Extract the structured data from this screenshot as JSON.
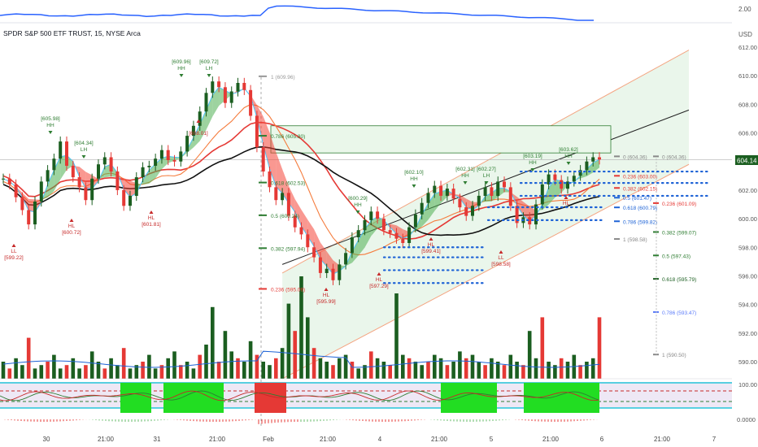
{
  "header": {
    "title": "SPDR S&P 500 ETF TRUST, 15, NYSE Arca",
    "currency": "USD"
  },
  "top_panel": {
    "right_value": "2.00"
  },
  "price_badge": {
    "value": "604.14",
    "color": "#1b5e20"
  },
  "colors": {
    "bull": "#1b5e20",
    "bear": "#e53935",
    "ma_red": "#e53935",
    "ma_orange": "#f57c3d",
    "ma_black": "#111111",
    "channel_fill": "#e8f5e9",
    "fib_blue": "#1565c0",
    "dots_blue": "#1e63d6",
    "osc_green": "#22dd22",
    "osc_red": "#e53935"
  },
  "chart_data": {
    "type": "candlestick",
    "ylim": [
      588,
      613
    ],
    "price_ticks": [
      "612.00",
      "610.00",
      "608.00",
      "606.00",
      "604.00",
      "602.00",
      "600.00",
      "598.00",
      "596.00",
      "594.00",
      "592.00",
      "590.00"
    ],
    "x_ticks": [
      "30",
      "21:00",
      "31",
      "21:00",
      "Feb",
      "21:00",
      "4",
      "21:00",
      "5",
      "21:00",
      "6",
      "21:00",
      "7"
    ],
    "close_path": [
      602.8,
      602.4,
      601.5,
      600.6,
      599.6,
      601.2,
      602.6,
      603.4,
      604.2,
      605.4,
      603.7,
      602.9,
      602.2,
      601.3,
      602.8,
      603.8,
      604.3,
      603.3,
      602.0,
      600.9,
      601.6,
      602.9,
      603.6,
      603.7,
      604.2,
      604.8,
      604.1,
      604.0,
      604.7,
      605.8,
      606.5,
      607.5,
      608.8,
      609.6,
      609.2,
      608.1,
      608.9,
      609.5,
      609.0,
      607.2,
      605.0,
      603.3,
      602.2,
      601.3,
      601.8,
      600.2,
      599.4,
      598.9,
      598.0,
      597.3,
      596.2,
      596.5,
      595.7,
      596.8,
      597.6,
      598.7,
      599.2,
      599.9,
      600.5,
      600.0,
      599.2,
      599.0,
      598.6,
      598.3,
      599.4,
      600.3,
      601.1,
      601.8,
      602.3,
      601.6,
      602.1,
      601.4,
      600.8,
      600.2,
      600.9,
      601.6,
      602.2,
      601.6,
      602.6,
      602.2,
      600.9,
      599.7,
      600.1,
      599.6,
      601.0,
      602.4,
      603.1,
      602.7,
      602.1,
      602.6,
      603.0,
      603.4,
      604.0,
      604.3,
      604.14
    ],
    "volume_path": [
      5,
      3,
      6,
      4,
      12,
      3,
      4,
      5,
      7,
      3,
      4,
      6,
      3,
      4,
      8,
      5,
      3,
      6,
      4,
      9,
      3,
      4,
      5,
      7,
      3,
      4,
      6,
      8,
      4,
      5,
      3,
      7,
      10,
      21,
      5,
      14,
      8,
      6,
      5,
      11,
      7,
      5,
      4,
      6,
      9,
      22,
      14,
      30,
      18,
      9,
      6,
      5,
      4,
      6,
      7,
      5,
      3,
      4,
      8,
      6,
      5,
      4,
      25,
      7,
      6,
      5,
      4,
      5,
      7,
      6,
      4,
      5,
      8,
      6,
      7,
      5,
      4,
      6,
      5,
      4,
      7,
      5,
      4,
      14,
      6,
      18,
      5,
      4,
      6,
      5,
      7,
      4,
      5,
      6,
      18
    ],
    "swing_labels": [
      {
        "tag": "LL",
        "price": "[599.22]"
      },
      {
        "tag": "HH",
        "price": "[605.98]"
      },
      {
        "tag": "HL",
        "price": "[600.72]"
      },
      {
        "tag": "LH",
        "price": "[604.34]"
      },
      {
        "tag": "HH",
        "price": "[609.96]"
      },
      {
        "tag": "LH",
        "price": "[609.72]"
      },
      {
        "tag": "HL",
        "price": "[601.81]"
      },
      {
        "tag": "",
        "price": "[608.01]"
      },
      {
        "tag": "HL",
        "price": "[595.99]"
      },
      {
        "tag": "HH",
        "price": "[600.29]"
      },
      {
        "tag": "HL",
        "price": "[597.29]"
      },
      {
        "tag": "HH",
        "price": "[602.10]"
      },
      {
        "tag": "HL",
        "price": "[599.41]"
      },
      {
        "tag": "HH",
        "price": "[602.31]"
      },
      {
        "tag": "LH",
        "price": "[602.27]"
      },
      {
        "tag": "LL",
        "price": "[598.58]"
      },
      {
        "tag": "HH",
        "price": "[603.19]"
      },
      {
        "tag": "HH",
        "price": "[603.62]"
      },
      {
        "tag": "HL",
        "price": ""
      }
    ],
    "fib_left": [
      {
        "label": "1 (609.96)"
      },
      {
        "label": "0.786 (605.80)"
      },
      {
        "label": "0.618 (602.53)"
      },
      {
        "label": "0.5 (600.24)"
      },
      {
        "label": "0.382 (597.94)"
      },
      {
        "label": "0.236 (595.09)"
      }
    ],
    "fib_mid": [
      {
        "label": "0 (604.36)"
      },
      {
        "label": "0.236 (603.00)"
      },
      {
        "label": "0.382 (602.15)"
      },
      {
        "label": "0.5 (601.47)"
      },
      {
        "label": "0.618 (600.79)"
      },
      {
        "label": "0.786 (599.82)"
      },
      {
        "label": "1 (598.58)"
      }
    ],
    "fib_right": [
      {
        "label": "0 (604.36)"
      },
      {
        "label": "0.236 (601.09)"
      },
      {
        "label": "0.382 (599.07)"
      },
      {
        "label": "0.5 (597.43)"
      },
      {
        "label": "0.618 (595.79)"
      },
      {
        "label": "0.786 (593.47)"
      },
      {
        "label": "1 (590.50)"
      }
    ],
    "oscillator": {
      "ticks": [
        "100.00",
        "0.0000"
      ]
    }
  }
}
